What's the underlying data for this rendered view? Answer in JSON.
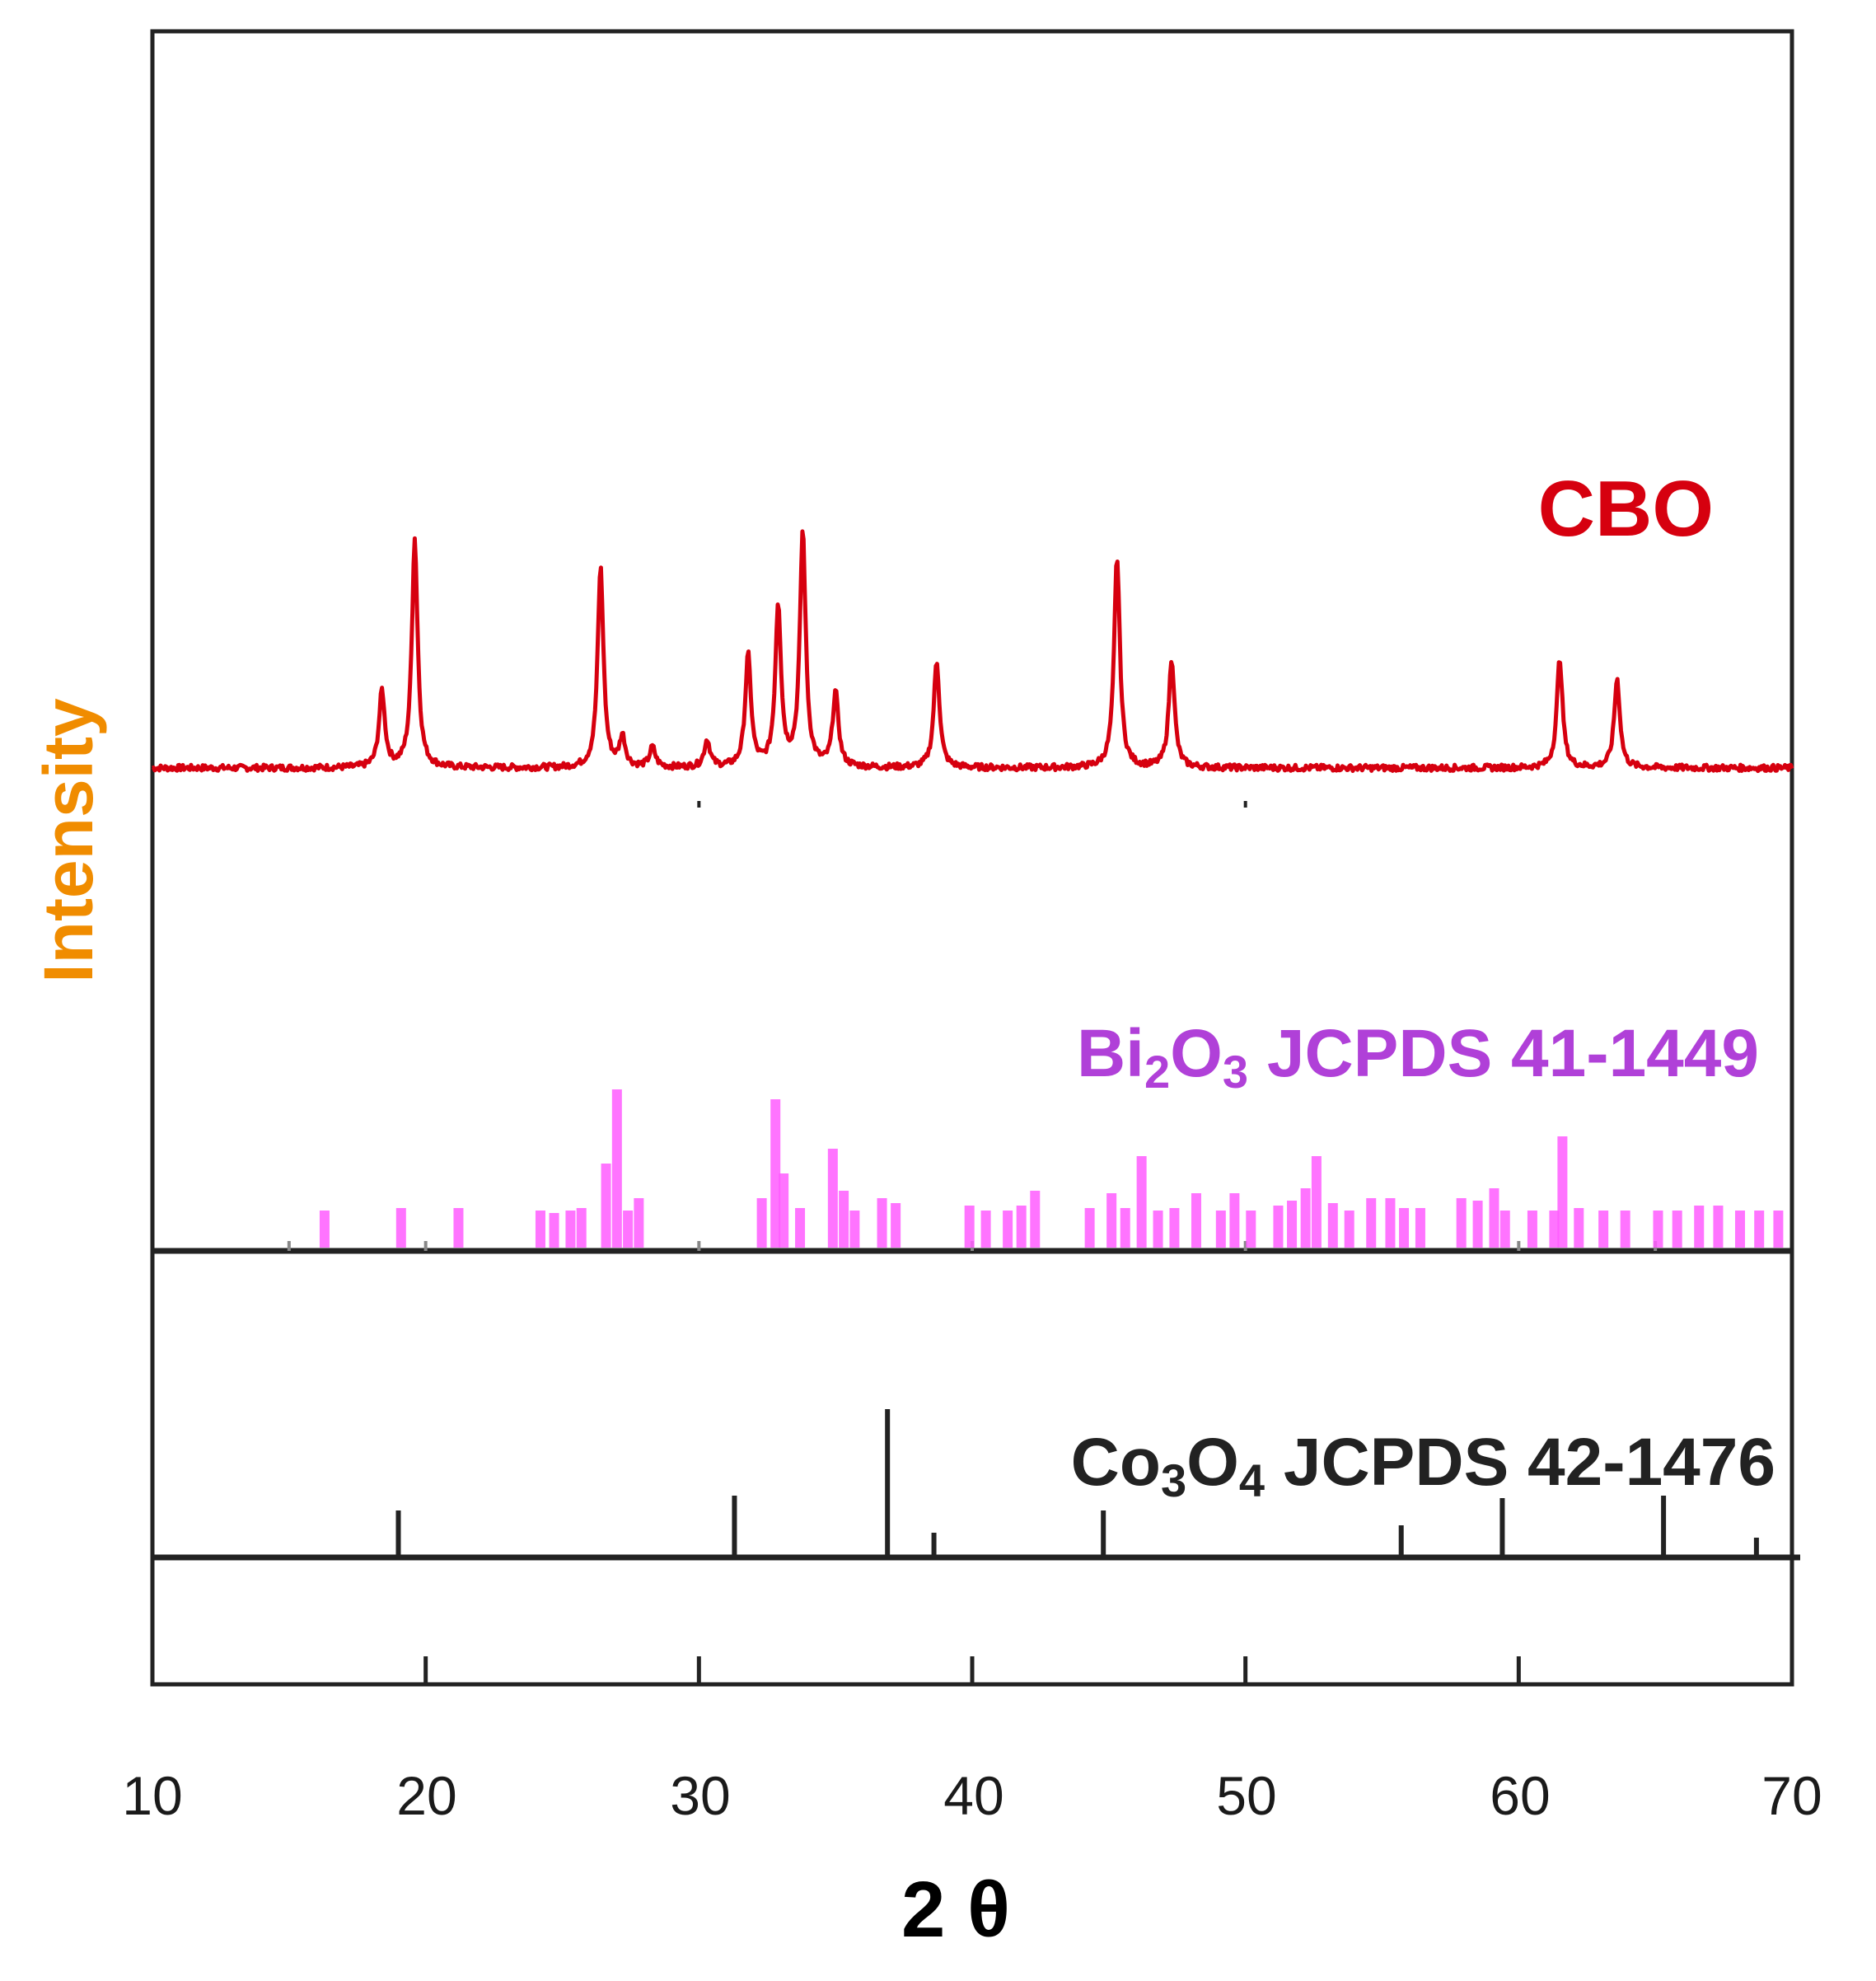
{
  "chart_data": {
    "type": "line",
    "xlabel": "2 θ",
    "ylabel": "Intensity",
    "xlim": [
      10,
      70
    ],
    "x_ticks": [
      "10",
      "20",
      "30",
      "40",
      "50",
      "60",
      "70"
    ],
    "y_ticks_shown": false,
    "grid": false,
    "colors": {
      "cbo": "#d6000f",
      "bi2o3": "#ff5cff",
      "bi2o3_label": "#b040d8",
      "co3o4": "#222222",
      "ylabel": "#f08c00",
      "axis": "#222222"
    },
    "panels": [
      {
        "name": "CBO",
        "label": "CBO",
        "type": "line",
        "color": "#d6000f",
        "peaks": [
          {
            "x": 18.4,
            "h": 62
          },
          {
            "x": 19.6,
            "h": 185
          },
          {
            "x": 26.4,
            "h": 162
          },
          {
            "x": 27.2,
            "h": 24
          },
          {
            "x": 28.3,
            "h": 16
          },
          {
            "x": 30.3,
            "h": 22
          },
          {
            "x": 31.8,
            "h": 90
          },
          {
            "x": 32.9,
            "h": 130
          },
          {
            "x": 33.8,
            "h": 190
          },
          {
            "x": 35.0,
            "h": 60
          },
          {
            "x": 38.7,
            "h": 86
          },
          {
            "x": 45.3,
            "h": 170
          },
          {
            "x": 47.3,
            "h": 88
          },
          {
            "x": 61.5,
            "h": 88
          },
          {
            "x": 63.6,
            "h": 72
          }
        ]
      },
      {
        "name": "Bi2O3",
        "label_main": "Bi",
        "label_sub1": "2",
        "label_mid": "O",
        "label_sub2": "3",
        "label_tail": " JCPDS 41-1449",
        "type": "stick",
        "color": "#ff5cff",
        "lines": [
          {
            "x": 16.3,
            "h": 30
          },
          {
            "x": 19.1,
            "h": 32
          },
          {
            "x": 21.2,
            "h": 32
          },
          {
            "x": 24.2,
            "h": 30
          },
          {
            "x": 24.7,
            "h": 28
          },
          {
            "x": 25.3,
            "h": 30
          },
          {
            "x": 25.7,
            "h": 32
          },
          {
            "x": 26.6,
            "h": 68
          },
          {
            "x": 27.0,
            "h": 128
          },
          {
            "x": 27.4,
            "h": 30
          },
          {
            "x": 27.8,
            "h": 40
          },
          {
            "x": 32.3,
            "h": 40
          },
          {
            "x": 32.8,
            "h": 120
          },
          {
            "x": 33.1,
            "h": 60
          },
          {
            "x": 33.7,
            "h": 32
          },
          {
            "x": 34.9,
            "h": 80
          },
          {
            "x": 35.3,
            "h": 46
          },
          {
            "x": 35.7,
            "h": 30
          },
          {
            "x": 36.7,
            "h": 40
          },
          {
            "x": 37.2,
            "h": 36
          },
          {
            "x": 39.9,
            "h": 34
          },
          {
            "x": 40.5,
            "h": 30
          },
          {
            "x": 41.3,
            "h": 30
          },
          {
            "x": 41.8,
            "h": 34
          },
          {
            "x": 42.3,
            "h": 46
          },
          {
            "x": 44.3,
            "h": 32
          },
          {
            "x": 45.1,
            "h": 44
          },
          {
            "x": 45.6,
            "h": 32
          },
          {
            "x": 46.2,
            "h": 74
          },
          {
            "x": 46.8,
            "h": 30
          },
          {
            "x": 47.4,
            "h": 32
          },
          {
            "x": 48.2,
            "h": 44
          },
          {
            "x": 49.1,
            "h": 30
          },
          {
            "x": 49.6,
            "h": 44
          },
          {
            "x": 50.2,
            "h": 30
          },
          {
            "x": 51.2,
            "h": 34
          },
          {
            "x": 51.7,
            "h": 38
          },
          {
            "x": 52.2,
            "h": 48
          },
          {
            "x": 52.6,
            "h": 74
          },
          {
            "x": 53.2,
            "h": 36
          },
          {
            "x": 53.8,
            "h": 30
          },
          {
            "x": 54.6,
            "h": 40
          },
          {
            "x": 55.3,
            "h": 40
          },
          {
            "x": 55.8,
            "h": 32
          },
          {
            "x": 56.4,
            "h": 32
          },
          {
            "x": 57.9,
            "h": 40
          },
          {
            "x": 58.5,
            "h": 38
          },
          {
            "x": 59.1,
            "h": 48
          },
          {
            "x": 59.5,
            "h": 30
          },
          {
            "x": 60.5,
            "h": 30
          },
          {
            "x": 61.3,
            "h": 30
          },
          {
            "x": 61.6,
            "h": 90
          },
          {
            "x": 62.2,
            "h": 32
          },
          {
            "x": 63.1,
            "h": 30
          },
          {
            "x": 63.9,
            "h": 30
          },
          {
            "x": 65.1,
            "h": 30
          },
          {
            "x": 65.8,
            "h": 30
          },
          {
            "x": 66.6,
            "h": 34
          },
          {
            "x": 67.3,
            "h": 34
          },
          {
            "x": 68.1,
            "h": 30
          },
          {
            "x": 68.8,
            "h": 30
          },
          {
            "x": 69.5,
            "h": 30
          }
        ]
      },
      {
        "name": "Co3O4",
        "label_main": "Co",
        "label_sub1": "3",
        "label_mid": "O",
        "label_sub2": "4",
        "label_tail": " JCPDS 42-1476",
        "type": "stick",
        "color": "#222222",
        "lines": [
          {
            "x": 19.0,
            "h": 36
          },
          {
            "x": 31.3,
            "h": 48
          },
          {
            "x": 36.9,
            "h": 118
          },
          {
            "x": 38.6,
            "h": 18
          },
          {
            "x": 44.8,
            "h": 36
          },
          {
            "x": 55.7,
            "h": 24
          },
          {
            "x": 59.4,
            "h": 46
          },
          {
            "x": 65.3,
            "h": 48
          },
          {
            "x": 68.7,
            "h": 14
          }
        ]
      }
    ]
  }
}
